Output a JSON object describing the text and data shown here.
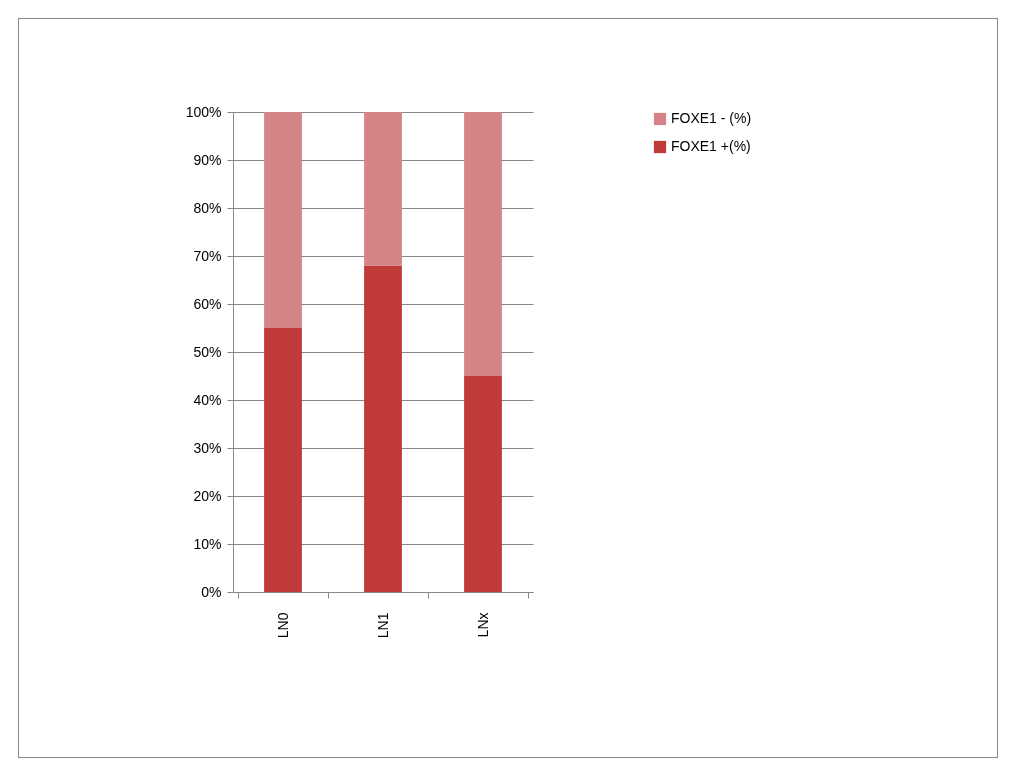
{
  "chart_data": {
    "type": "bar",
    "stacked": true,
    "categories": [
      "LN0",
      "LN1",
      "LNx"
    ],
    "series": [
      {
        "name": "FOXE1 +(%)",
        "color": "#bf3a38",
        "values": [
          55,
          68,
          45
        ]
      },
      {
        "name": "FOXE1 - (%)",
        "color": "#d48486",
        "values": [
          45,
          32,
          55
        ]
      }
    ],
    "ylim": [
      0,
      100
    ],
    "yticks": [
      {
        "value": 0,
        "label": "0%"
      },
      {
        "value": 10,
        "label": "10%"
      },
      {
        "value": 20,
        "label": "20%"
      },
      {
        "value": 30,
        "label": "30%"
      },
      {
        "value": 40,
        "label": "40%"
      },
      {
        "value": 50,
        "label": "50%"
      },
      {
        "value": 60,
        "label": "60%"
      },
      {
        "value": 70,
        "label": "70%"
      },
      {
        "value": 80,
        "label": "80%"
      },
      {
        "value": 90,
        "label": "90%"
      },
      {
        "value": 100,
        "label": "100%"
      }
    ],
    "grid": "y",
    "legend": "right"
  }
}
